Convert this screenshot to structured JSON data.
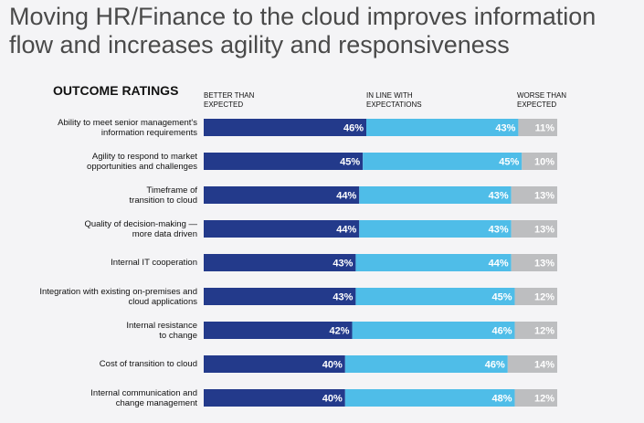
{
  "title_lines": [
    "Moving HR/Finance to the cloud improves information",
    "flow and increases agility and responsiveness"
  ],
  "chart_data": {
    "type": "bar",
    "orientation": "horizontal",
    "stacked": true,
    "section_title": "OUTCOME RATINGS",
    "categories": [
      [
        "Ability to meet senior management's",
        "information requirements"
      ],
      [
        "Agility to respond to market",
        "opportunities and challenges"
      ],
      [
        "Timeframe of",
        "transition to cloud"
      ],
      [
        "Quality of decision-making —",
        "more data driven"
      ],
      [
        "Internal IT cooperation"
      ],
      [
        "Integration with existing on-premises and",
        "cloud applications"
      ],
      [
        "Internal resistance",
        "to change"
      ],
      [
        "Cost of transition to cloud"
      ],
      [
        "Internal communication and",
        "change management"
      ]
    ],
    "series": [
      {
        "name": [
          "BETTER THAN",
          "EXPECTED"
        ],
        "color": "#233a8b",
        "values": [
          46,
          45,
          44,
          44,
          43,
          43,
          42,
          40,
          40
        ],
        "labels": [
          "46%",
          "45%",
          "44%",
          "44%",
          "43%",
          "43%",
          "42%",
          "40%",
          "40%"
        ]
      },
      {
        "name": [
          "IN LINE WITH",
          "EXPECTATIONS"
        ],
        "color": "#4fbde8",
        "values": [
          43,
          45,
          43,
          43,
          44,
          45,
          46,
          46,
          48
        ],
        "labels": [
          "43%",
          "45%",
          "43%",
          "43%",
          "44%",
          "45%",
          "46%",
          "46%",
          "48%"
        ]
      },
      {
        "name": [
          "WORSE THAN",
          "EXPECTED"
        ],
        "color": "#bdbec0",
        "values": [
          11,
          10,
          13,
          13,
          13,
          12,
          12,
          14,
          12
        ],
        "labels": [
          "11%",
          "10%",
          "13%",
          "13%",
          "13%",
          "12%",
          "12%",
          "14%",
          "12%"
        ]
      }
    ],
    "xlim": [
      0,
      100
    ],
    "legend_position": "top",
    "grid": false
  }
}
